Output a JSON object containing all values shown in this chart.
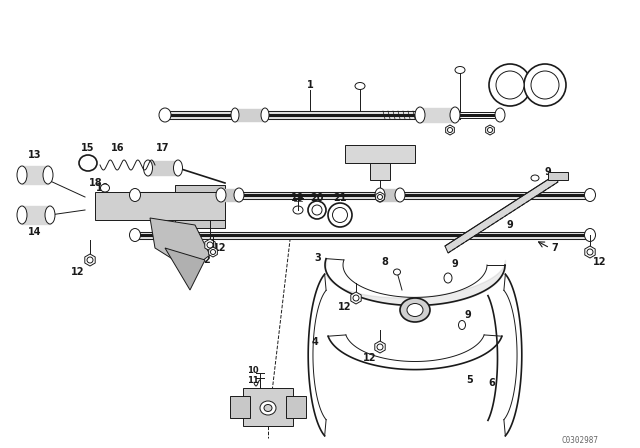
{
  "background_color": "#ffffff",
  "line_color": "#1a1a1a",
  "figsize": [
    6.4,
    4.48
  ],
  "dpi": 100,
  "watermark": "C0302987"
}
